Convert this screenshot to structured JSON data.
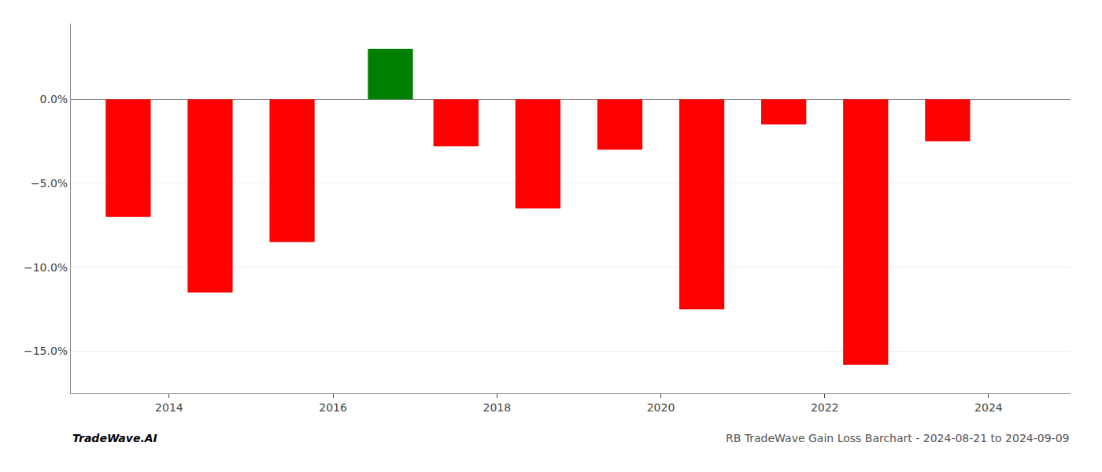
{
  "chart_data": {
    "type": "bar",
    "x": [
      2013.5,
      2014.5,
      2015.5,
      2016.7,
      2017.5,
      2018.5,
      2019.5,
      2020.5,
      2021.5,
      2022.5,
      2023.5
    ],
    "values": [
      -7.0,
      -11.5,
      -8.5,
      3.0,
      -2.8,
      -6.5,
      -3.0,
      -12.5,
      -1.5,
      -15.8,
      -2.5
    ],
    "colors": [
      "red",
      "red",
      "red",
      "green",
      "red",
      "red",
      "red",
      "red",
      "red",
      "red",
      "red"
    ],
    "xlim": [
      2012.8,
      2025.0
    ],
    "xticks": [
      2014,
      2016,
      2018,
      2020,
      2022,
      2024
    ],
    "ylim": [
      -17.5,
      4.5
    ],
    "yticks": [
      {
        "value": 0,
        "label": "0.0%"
      },
      {
        "value": -5,
        "label": "−5.0%"
      },
      {
        "value": -10,
        "label": "−10.0%"
      },
      {
        "value": -15,
        "label": "−15.0%"
      }
    ],
    "grid": true,
    "annotations": [
      "TradeWave.AI",
      "RB TradeWave Gain Loss Barchart - 2024-08-21 to 2024-09-09"
    ]
  }
}
